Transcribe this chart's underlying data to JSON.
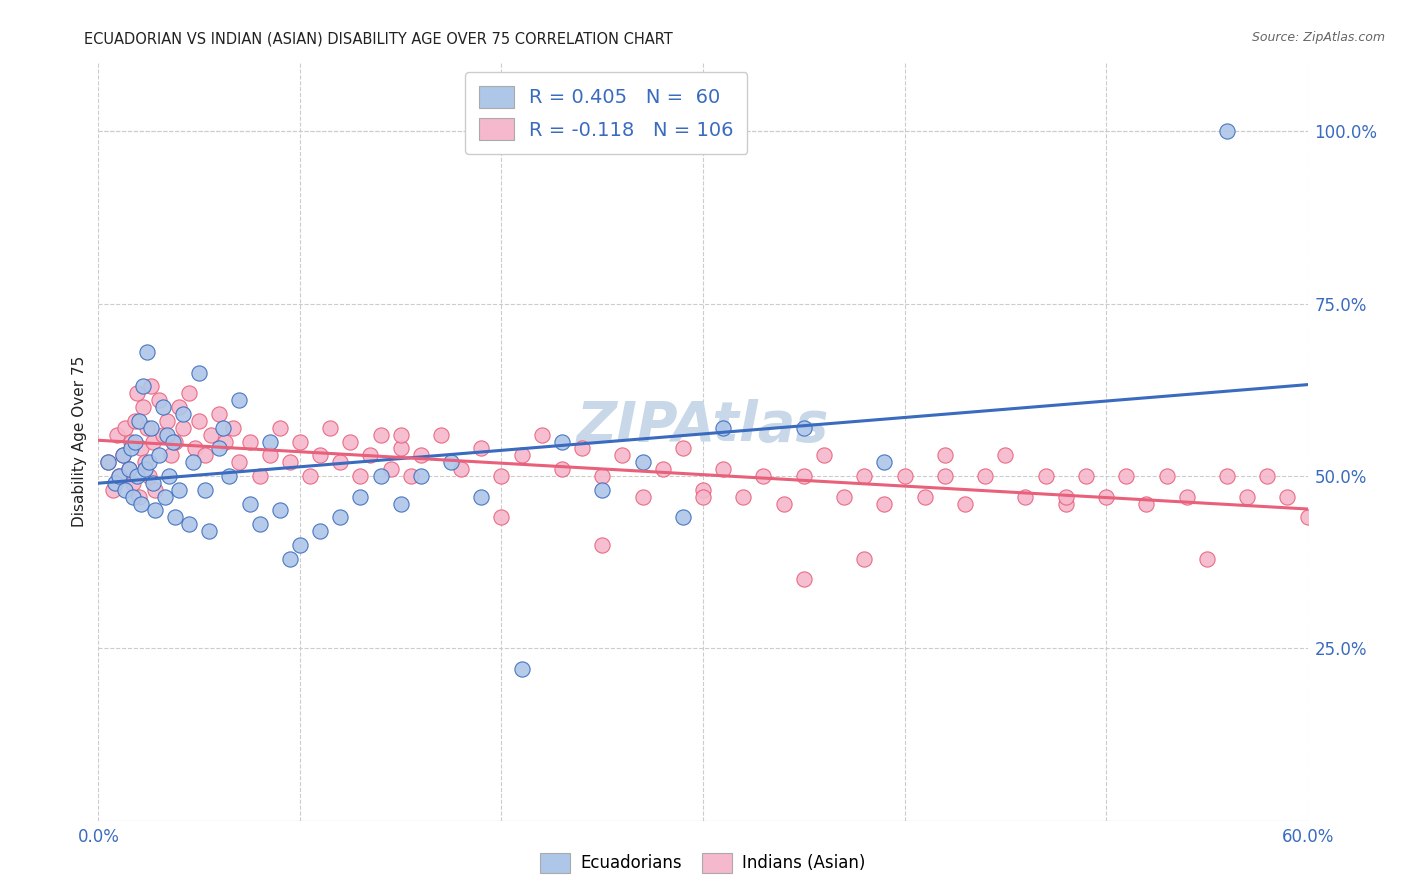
{
  "title": "ECUADORIAN VS INDIAN (ASIAN) DISABILITY AGE OVER 75 CORRELATION CHART",
  "source": "Source: ZipAtlas.com",
  "ylabel": "Disability Age Over 75",
  "xlim": [
    0.0,
    0.6
  ],
  "ylim": [
    0.0,
    1.1
  ],
  "x_ticks": [
    0.0,
    0.1,
    0.2,
    0.3,
    0.4,
    0.5,
    0.6
  ],
  "x_tick_labels": [
    "0.0%",
    "",
    "",
    "",
    "",
    "",
    "60.0%"
  ],
  "y_ticks_right": [
    0.25,
    0.5,
    0.75,
    1.0
  ],
  "y_tick_labels_right": [
    "25.0%",
    "50.0%",
    "75.0%",
    "100.0%"
  ],
  "ecuadorians_color": "#aec6e8",
  "indians_color": "#f5b8cc",
  "ecuador_line_color": "#3a6bbf",
  "indian_line_color": "#e8607a",
  "background_color": "#ffffff",
  "grid_color": "#cccccc",
  "title_color": "#222222",
  "source_color": "#666666",
  "stat_color": "#3a6bbf",
  "watermark_color": "#c8d8e8",
  "watermark": "ZIPAtlas",
  "ecu_R": 0.405,
  "ecu_N": 60,
  "ind_R": -0.118,
  "ind_N": 106,
  "ecuador_scatter_x": [
    0.005,
    0.008,
    0.01,
    0.012,
    0.013,
    0.015,
    0.016,
    0.017,
    0.018,
    0.019,
    0.02,
    0.021,
    0.022,
    0.023,
    0.024,
    0.025,
    0.026,
    0.027,
    0.028,
    0.03,
    0.032,
    0.033,
    0.034,
    0.035,
    0.037,
    0.038,
    0.04,
    0.042,
    0.045,
    0.047,
    0.05,
    0.053,
    0.055,
    0.06,
    0.062,
    0.065,
    0.07,
    0.075,
    0.08,
    0.085,
    0.09,
    0.095,
    0.1,
    0.11,
    0.12,
    0.13,
    0.14,
    0.15,
    0.16,
    0.175,
    0.19,
    0.21,
    0.23,
    0.25,
    0.27,
    0.29,
    0.31,
    0.35,
    0.39,
    0.56
  ],
  "ecuador_scatter_y": [
    0.52,
    0.49,
    0.5,
    0.53,
    0.48,
    0.51,
    0.54,
    0.47,
    0.55,
    0.5,
    0.58,
    0.46,
    0.63,
    0.51,
    0.68,
    0.52,
    0.57,
    0.49,
    0.45,
    0.53,
    0.6,
    0.47,
    0.56,
    0.5,
    0.55,
    0.44,
    0.48,
    0.59,
    0.43,
    0.52,
    0.65,
    0.48,
    0.42,
    0.54,
    0.57,
    0.5,
    0.61,
    0.46,
    0.43,
    0.55,
    0.45,
    0.38,
    0.4,
    0.42,
    0.44,
    0.47,
    0.5,
    0.46,
    0.5,
    0.52,
    0.47,
    0.22,
    0.55,
    0.48,
    0.52,
    0.44,
    0.57,
    0.57,
    0.52,
    1.0
  ],
  "indian_scatter_x": [
    0.005,
    0.007,
    0.009,
    0.01,
    0.012,
    0.013,
    0.015,
    0.016,
    0.017,
    0.018,
    0.019,
    0.02,
    0.021,
    0.022,
    0.023,
    0.024,
    0.025,
    0.026,
    0.027,
    0.028,
    0.03,
    0.032,
    0.034,
    0.036,
    0.038,
    0.04,
    0.042,
    0.045,
    0.048,
    0.05,
    0.053,
    0.056,
    0.06,
    0.063,
    0.067,
    0.07,
    0.075,
    0.08,
    0.085,
    0.09,
    0.095,
    0.1,
    0.105,
    0.11,
    0.115,
    0.12,
    0.125,
    0.13,
    0.135,
    0.14,
    0.145,
    0.15,
    0.155,
    0.16,
    0.17,
    0.18,
    0.19,
    0.2,
    0.21,
    0.22,
    0.23,
    0.24,
    0.25,
    0.26,
    0.27,
    0.28,
    0.29,
    0.3,
    0.31,
    0.32,
    0.33,
    0.34,
    0.35,
    0.36,
    0.37,
    0.38,
    0.39,
    0.4,
    0.41,
    0.42,
    0.43,
    0.44,
    0.45,
    0.46,
    0.47,
    0.48,
    0.49,
    0.5,
    0.51,
    0.52,
    0.53,
    0.54,
    0.55,
    0.56,
    0.57,
    0.58,
    0.59,
    0.6,
    0.25,
    0.38,
    0.15,
    0.2,
    0.3,
    0.42,
    0.35,
    0.48
  ],
  "indian_scatter_y": [
    0.52,
    0.48,
    0.56,
    0.5,
    0.53,
    0.57,
    0.51,
    0.55,
    0.49,
    0.58,
    0.62,
    0.47,
    0.54,
    0.6,
    0.52,
    0.57,
    0.5,
    0.63,
    0.55,
    0.48,
    0.61,
    0.56,
    0.58,
    0.53,
    0.55,
    0.6,
    0.57,
    0.62,
    0.54,
    0.58,
    0.53,
    0.56,
    0.59,
    0.55,
    0.57,
    0.52,
    0.55,
    0.5,
    0.53,
    0.57,
    0.52,
    0.55,
    0.5,
    0.53,
    0.57,
    0.52,
    0.55,
    0.5,
    0.53,
    0.56,
    0.51,
    0.54,
    0.5,
    0.53,
    0.56,
    0.51,
    0.54,
    0.5,
    0.53,
    0.56,
    0.51,
    0.54,
    0.5,
    0.53,
    0.47,
    0.51,
    0.54,
    0.48,
    0.51,
    0.47,
    0.5,
    0.46,
    0.5,
    0.53,
    0.47,
    0.5,
    0.46,
    0.5,
    0.47,
    0.5,
    0.46,
    0.5,
    0.53,
    0.47,
    0.5,
    0.46,
    0.5,
    0.47,
    0.5,
    0.46,
    0.5,
    0.47,
    0.38,
    0.5,
    0.47,
    0.5,
    0.47,
    0.44,
    0.4,
    0.38,
    0.56,
    0.44,
    0.47,
    0.53,
    0.35,
    0.47
  ]
}
